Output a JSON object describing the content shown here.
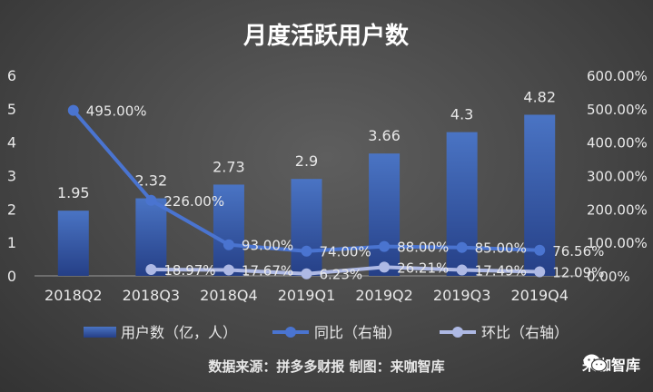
{
  "chart_data": {
    "type": "bar",
    "title": "月度活跃用户数",
    "categories": [
      "2018Q2",
      "2018Q3",
      "2018Q4",
      "2019Q1",
      "2019Q2",
      "2019Q3",
      "2019Q4"
    ],
    "series": [
      {
        "name": "用户数（亿，人）",
        "type": "bar",
        "axis": "left",
        "values": [
          1.95,
          2.32,
          2.73,
          2.9,
          3.66,
          4.3,
          4.82
        ],
        "labels": [
          "1.95",
          "2.32",
          "2.73",
          "2.9",
          "3.66",
          "4.3",
          "4.82"
        ]
      },
      {
        "name": "同比（右轴）",
        "type": "line",
        "axis": "right",
        "values": [
          495.0,
          226.0,
          93.0,
          74.0,
          88.0,
          85.0,
          76.56
        ],
        "labels": [
          "495.00%",
          "226.00%",
          "93.00%",
          "74.00%",
          "88.00%",
          "85.00%",
          "76.56%"
        ]
      },
      {
        "name": "环比（右轴）",
        "type": "line",
        "axis": "right",
        "values": [
          null,
          18.97,
          17.67,
          6.23,
          26.21,
          17.49,
          12.09
        ],
        "labels": [
          "",
          "18.97%",
          "17.67%",
          "6.23%",
          "26.21%",
          "17.49%",
          "12.09%"
        ]
      }
    ],
    "ylim": [
      0,
      6
    ],
    "yticks": [
      "0",
      "1",
      "2",
      "3",
      "4",
      "5",
      "6"
    ],
    "y2lim": [
      0,
      600
    ],
    "y2ticks": [
      "0.00%",
      "100.00%",
      "200.00%",
      "300.00%",
      "400.00%",
      "500.00%",
      "600.00%"
    ],
    "legend_position": "bottom",
    "grid": false,
    "colors": {
      "bar_top": "#4a74c4",
      "bar_bottom": "#253f86",
      "yoy": "#4a74d0",
      "mom": "#aeb9e4",
      "text": "#e8e8e8",
      "title": "#ffffff",
      "axis": "#9a9a9a"
    }
  },
  "footer": {
    "source": "数据来源：拼多多财报 制图：来咖智库",
    "brand": "来咖智库",
    "brand_icon": "wechat-icon"
  }
}
